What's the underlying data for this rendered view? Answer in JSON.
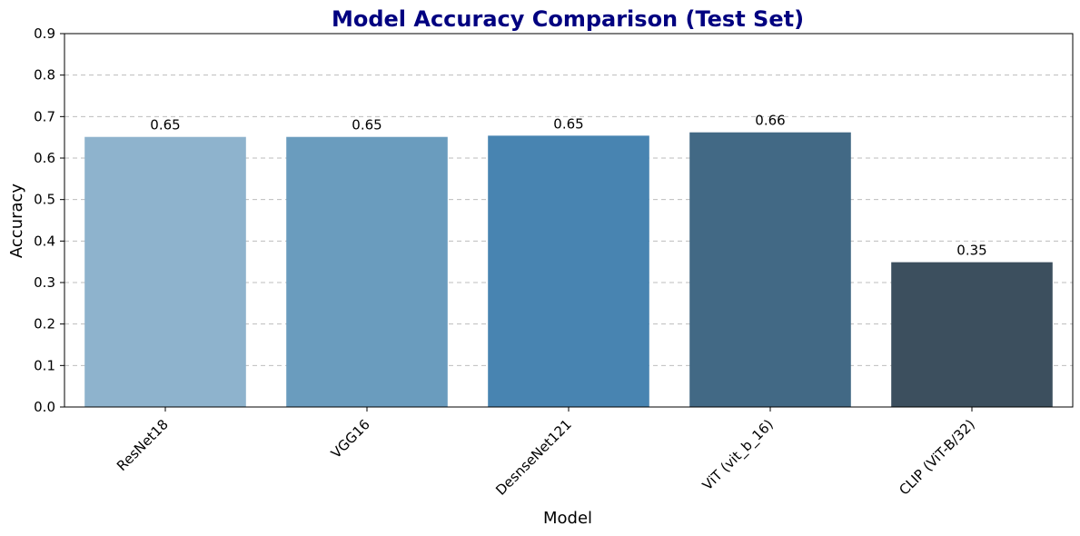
{
  "chart_data": {
    "type": "bar",
    "title": "Model Accuracy Comparison (Test Set)",
    "xlabel": "Model",
    "ylabel": "Accuracy",
    "categories": [
      "ResNet18",
      "VGG16",
      "DesnseNet121",
      "ViT (vit_b_16)",
      "CLIP (ViT-B/32)"
    ],
    "values": [
      0.651,
      0.651,
      0.654,
      0.662,
      0.349
    ],
    "data_labels": [
      "0.65",
      "0.65",
      "0.65",
      "0.66",
      "0.35"
    ],
    "ylim": [
      0,
      0.9
    ],
    "yticks": [
      "0.0",
      "0.1",
      "0.2",
      "0.3",
      "0.4",
      "0.5",
      "0.6",
      "0.7",
      "0.8",
      "0.9"
    ],
    "grid": "y-dashed",
    "x_tick_rotation": -45,
    "colors": {
      "title": "#000080",
      "bars": [
        "#8eb3cd",
        "#6a9cbe",
        "#4884b1",
        "#426985",
        "#3c4f5e"
      ]
    }
  }
}
